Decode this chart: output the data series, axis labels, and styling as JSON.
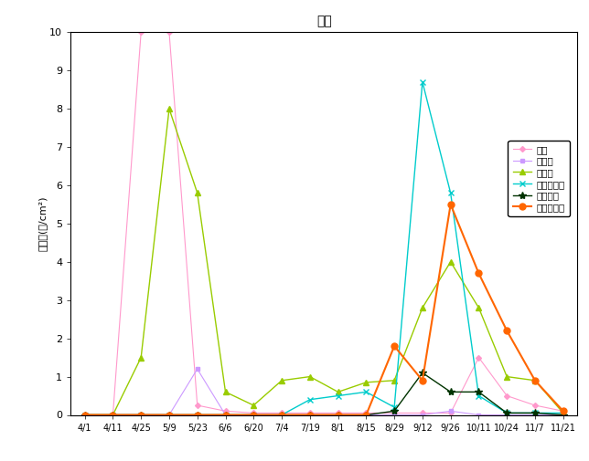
{
  "title": "週計",
  "ylabel": "花粉数(個/cm²)",
  "ylim": [
    0,
    10
  ],
  "yticks": [
    0,
    1,
    2,
    3,
    4,
    5,
    6,
    7,
    8,
    9,
    10
  ],
  "x_labels": [
    "4/1",
    "4/11",
    "4/25",
    "5/9",
    "5/23",
    "6/6",
    "6/20",
    "7/4",
    "7/19",
    "8/1",
    "8/15",
    "8/29",
    "9/12",
    "9/26",
    "10/11",
    "10/24",
    "11/7",
    "11/21"
  ],
  "series": [
    {
      "name": "スギ",
      "color": "#ff99cc",
      "marker": "D",
      "markersize": 3,
      "linewidth": 0.8,
      "values": [
        0.0,
        0.0,
        10.0,
        10.0,
        0.25,
        0.1,
        0.05,
        0.05,
        0.05,
        0.05,
        0.05,
        0.05,
        0.05,
        0.05,
        1.5,
        0.5,
        0.25,
        0.1
      ]
    },
    {
      "name": "ヒノキ",
      "color": "#cc99ff",
      "marker": "s",
      "markersize": 3,
      "linewidth": 0.8,
      "values": [
        0,
        0,
        0,
        0,
        1.2,
        0,
        0,
        0,
        0,
        0,
        0,
        0,
        0,
        0.1,
        0,
        0,
        0,
        0
      ]
    },
    {
      "name": "イネ科",
      "color": "#99cc00",
      "marker": "^",
      "markersize": 5,
      "linewidth": 1,
      "values": [
        0,
        0,
        1.5,
        8.0,
        5.8,
        0.6,
        0.25,
        0.9,
        1.0,
        0.6,
        0.85,
        0.9,
        2.8,
        4.0,
        2.8,
        1.0,
        0.9,
        0.05
      ]
    },
    {
      "name": "ブタクサ属",
      "color": "#00cccc",
      "marker": "x",
      "markersize": 5,
      "linewidth": 1,
      "values": [
        0,
        0,
        0,
        0,
        0,
        0,
        0,
        0,
        0.4,
        0.5,
        0.6,
        0.2,
        8.7,
        5.8,
        0.5,
        0.05,
        0.05,
        0.05
      ]
    },
    {
      "name": "ヨモギ属",
      "color": "#003300",
      "marker": "*",
      "markersize": 6,
      "linewidth": 1,
      "values": [
        0,
        0,
        0,
        0,
        0,
        0,
        0,
        0,
        0,
        0,
        0,
        0.1,
        1.1,
        0.6,
        0.6,
        0.05,
        0.05,
        0
      ]
    },
    {
      "name": "カナムグラ",
      "color": "#ff6600",
      "marker": "o",
      "markersize": 5,
      "linewidth": 1.5,
      "values": [
        0,
        0,
        0,
        0,
        0,
        0,
        0,
        0,
        0,
        0,
        0,
        1.8,
        0.9,
        5.5,
        3.7,
        2.2,
        0.9,
        0.1
      ]
    }
  ],
  "fig_width": 6.44,
  "fig_height": 5.05,
  "dpi": 100
}
